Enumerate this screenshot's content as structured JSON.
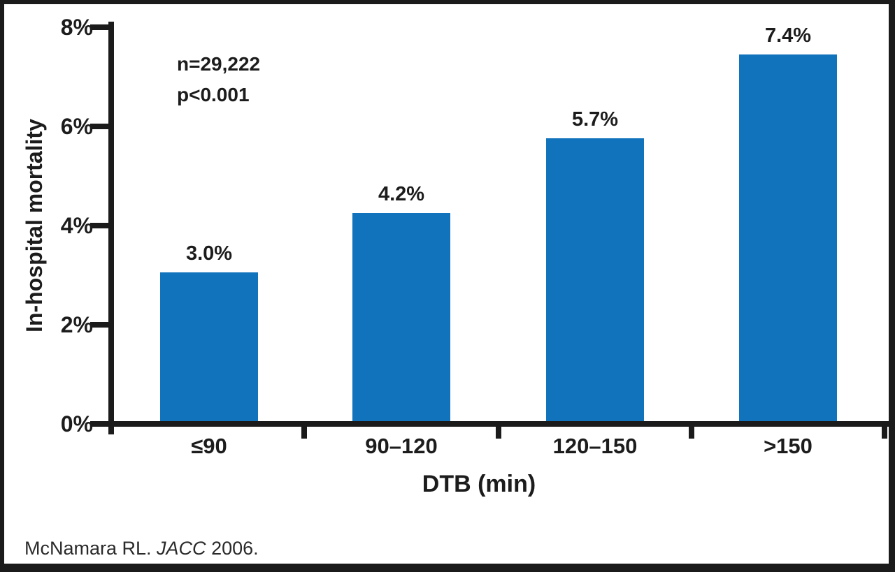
{
  "chart_data": {
    "type": "bar",
    "categories": [
      "≤90",
      "90–120",
      "120–150",
      ">150"
    ],
    "values": [
      3.0,
      4.2,
      5.7,
      7.4
    ],
    "value_labels": [
      "3.0%",
      "4.2%",
      "5.7%",
      "7.4%"
    ],
    "xlabel": "DTB (min)",
    "ylabel": "In-hospital mortality",
    "ylim": [
      0,
      8
    ],
    "ytick_values": [
      0,
      2,
      4,
      6,
      8
    ],
    "ytick_labels": [
      "0%",
      "2%",
      "4%",
      "6%",
      "8%"
    ],
    "grid": false,
    "legend": null,
    "bar_color": "#1173bc",
    "annotations": [
      "n=29,222",
      "p<0.001"
    ]
  },
  "annotation": {
    "line1": "n=29,222",
    "line2": "p<0.001"
  },
  "citation": {
    "prefix": "McNamara RL. ",
    "journal": "JACC",
    "suffix": " 2006."
  }
}
